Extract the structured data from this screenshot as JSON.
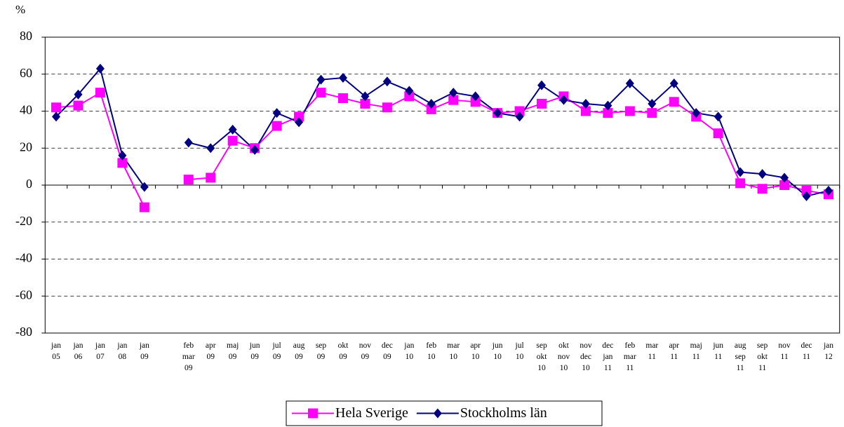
{
  "chart_data": {
    "type": "line",
    "y_label": "%",
    "categories": [
      "jan 05",
      "jan 06",
      "jan 07",
      "jan 08",
      "jan 09",
      null,
      "feb mar 09",
      "apr 09",
      "maj 09",
      "jun 09",
      "jul 09",
      "aug 09",
      "sep 09",
      "okt 09",
      "nov 09",
      "dec 09",
      "jan 10",
      "feb 10",
      "mar 10",
      "apr 10",
      "jun 10",
      "jul 10",
      "sep okt 10",
      "okt nov 10",
      "nov dec 10",
      "dec jan 11",
      "feb mar 11",
      "mar 11",
      "apr 11",
      "maj 11",
      "jun 11",
      "aug sep 11",
      "sep okt 11",
      "nov 11",
      "dec 11",
      "jan 12"
    ],
    "series": [
      {
        "name": "Hela Sverige",
        "color": "#ff00ff",
        "marker": "square",
        "values": [
          42,
          43,
          50,
          12,
          -12,
          null,
          3,
          4,
          24,
          20,
          32,
          37,
          50,
          47,
          44,
          42,
          48,
          41,
          46,
          45,
          39,
          40,
          44,
          48,
          40,
          39,
          40,
          39,
          45,
          37,
          28,
          1,
          -2,
          0,
          -3,
          -5
        ]
      },
      {
        "name": "Stockholms län",
        "color": "#000080",
        "marker": "diamond",
        "values": [
          37,
          49,
          63,
          16,
          -1,
          null,
          23,
          20,
          30,
          19,
          39,
          34,
          57,
          58,
          48,
          56,
          51,
          44,
          50,
          48,
          39,
          37,
          54,
          46,
          44,
          43,
          55,
          44,
          55,
          39,
          37,
          7,
          6,
          4,
          -6,
          -3
        ]
      }
    ],
    "ylim": [
      -80,
      80
    ],
    "yticks": [
      -80,
      -60,
      -40,
      -20,
      0,
      20,
      40,
      60,
      80
    ],
    "grid": true,
    "legend": "bottom"
  }
}
